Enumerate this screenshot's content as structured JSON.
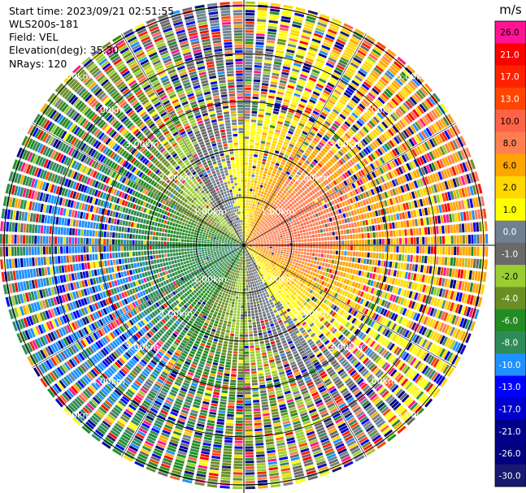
{
  "header": {
    "start_time": "Start time: 2023/09/21 02:51:55",
    "site": "WLS200s-181",
    "field": "Field: VEL",
    "elevation": "Elevation(deg): 35.30",
    "nrays": "NRays: 120"
  },
  "chart_data": {
    "type": "ppi-polar-heatmap",
    "field": "VEL",
    "units": "m/s",
    "n_rays": 120,
    "elevation_deg": 35.3,
    "range_rings_km": [
      1.0,
      2.0,
      3.0,
      4.0,
      5.0
    ],
    "range_ring_labels": [
      "1.00km",
      "2.00km",
      "3.00km",
      "4.00km",
      "5.00km"
    ],
    "max_range_km": 5.1,
    "colorbar": {
      "unit_label": "m/s",
      "tick_labels": [
        "26.0",
        "21.0",
        "17.0",
        "13.0",
        "10.0",
        "8.0",
        "6.0",
        "2.0",
        "1.0",
        "0.0",
        "-1.0",
        "-2.0",
        "-4.0",
        "-6.0",
        "-8.0",
        "-10.0",
        "-13.0",
        "-17.0",
        "-21.0",
        "-26.0",
        "-30.0"
      ],
      "colors": [
        "#ff1493",
        "#ff0000",
        "#ff2200",
        "#ff4500",
        "#ff6347",
        "#ff7f50",
        "#ffa500",
        "#ffd700",
        "#ffff00",
        "#708090",
        "#696969",
        "#9acd32",
        "#6b8e23",
        "#228b22",
        "#2e8b57",
        "#1e90ff",
        "#0000ff",
        "#0000cd",
        "#00008b",
        "#000080",
        "#191970"
      ],
      "vmin": -30.0,
      "vmax": 30.0
    },
    "pattern": "approaching winds from west-southwest (negative/green-blue) and receding toward east-northeast (positive/yellow-orange); noisy speckle beyond ~2.5 km"
  }
}
